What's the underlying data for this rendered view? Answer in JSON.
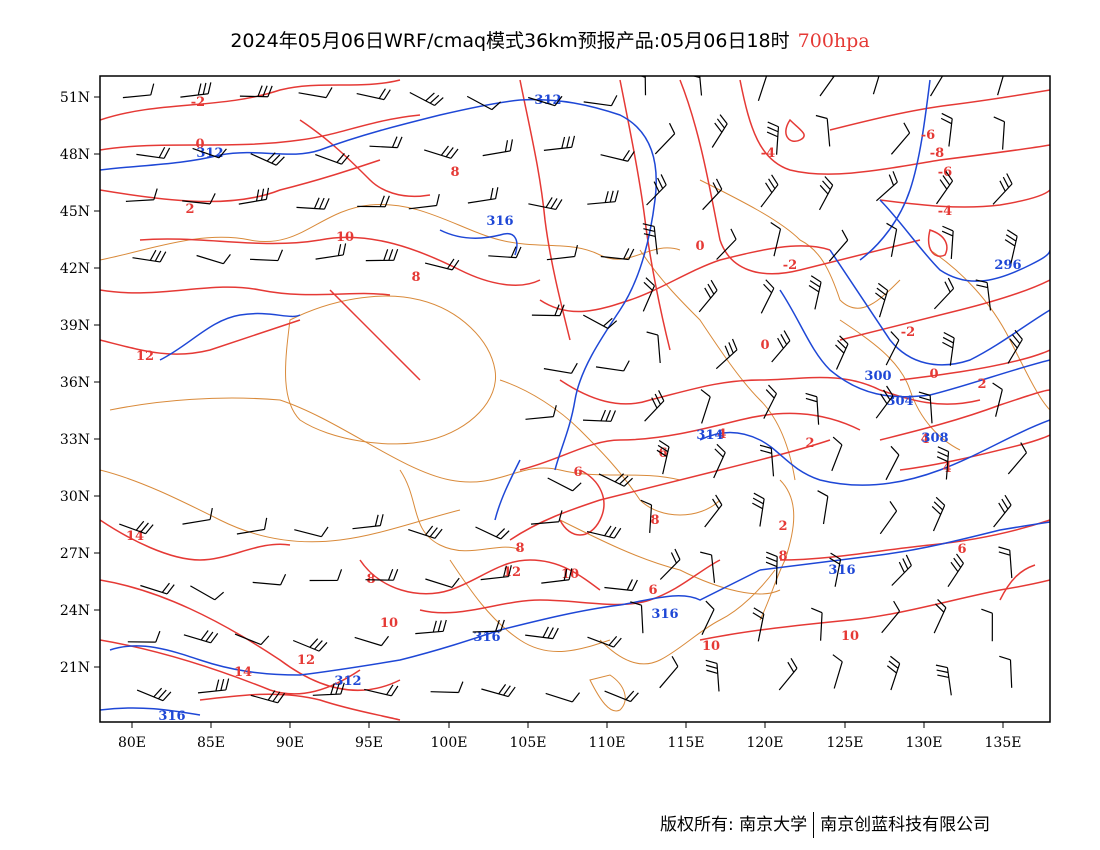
{
  "title": {
    "main": "2024年05月06日WRF/cmaq模式36km预报产品:05月06日18时",
    "level": "700hpa"
  },
  "axes": {
    "lat_labels": [
      "51N",
      "48N",
      "45N",
      "42N",
      "39N",
      "36N",
      "33N",
      "30N",
      "27N",
      "24N",
      "21N"
    ],
    "lon_labels": [
      "80E",
      "85E",
      "90E",
      "95E",
      "100E",
      "105E",
      "110E",
      "115E",
      "120E",
      "125E",
      "130E",
      "135E"
    ],
    "lon_range": [
      78,
      138
    ],
    "lat_range": [
      18.3,
      52.2
    ]
  },
  "contour_labels": {
    "temperature": [
      "-2",
      "0",
      "2",
      "8",
      "10",
      "12",
      "14",
      "14",
      "12",
      "10",
      "8",
      "6",
      "6",
      "8",
      "10",
      "12",
      "8",
      "6",
      "4",
      "2",
      "0",
      "-2",
      "-4",
      "-6",
      "-8",
      "-4",
      "-2",
      "0",
      "2",
      "4",
      "4",
      "6",
      "8",
      "10",
      "10",
      "8",
      "2",
      "0",
      "-6"
    ],
    "geopotential": [
      "312",
      "312",
      "316",
      "316",
      "316",
      "312",
      "314",
      "316",
      "316",
      "308",
      "300",
      "304",
      "296"
    ]
  },
  "colors": {
    "temperature_contour": "#e53935",
    "geopotential_contour": "#1e47d6",
    "boundary": "#d98a3a",
    "wind_barb": "#000000"
  },
  "credit": {
    "owner": "版权所有: 南京大学",
    "company": "南京创蓝科技有限公司"
  }
}
